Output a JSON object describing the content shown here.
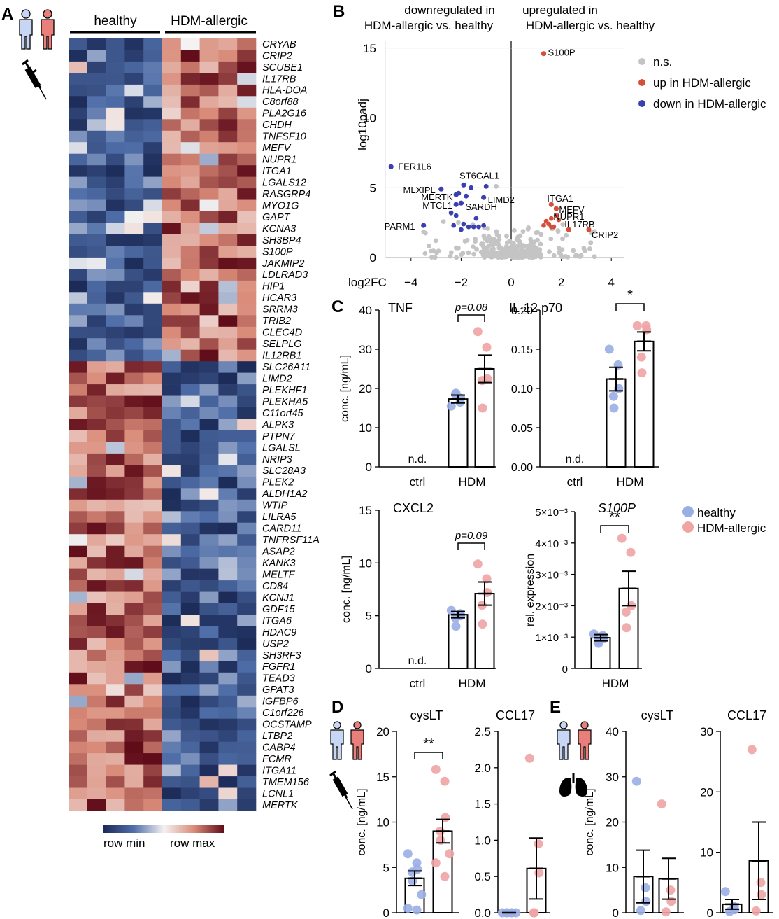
{
  "colors": {
    "healthy": "#9aaee6",
    "allergic": "#f0a4a4",
    "up": "#d5503a",
    "down": "#3a40b0",
    "ns": "#c4c4c4",
    "hm_low": "#1c2b58",
    "hm_mid": "#f4f2f2",
    "hm_high": "#5e0a18"
  },
  "icons": [
    "person-healthy-icon",
    "person-allergic-icon",
    "syringe-icon",
    "lung-icon"
  ],
  "panel_a": {
    "letter": "A",
    "group_healthy": "healthy",
    "group_allergic": "HDM-allergic",
    "legend_min": "row min",
    "legend_max": "row max",
    "genes": [
      "CRYAB",
      "CRIP2",
      "SCUBE1",
      "IL17RB",
      "HLA-DOA",
      "C8orf88",
      "PLA2G16",
      "CHDH",
      "TNFSF10",
      "MEFV",
      "NUPR1",
      "ITGA1",
      "LGALS12",
      "RASGRP4",
      "MYO1G",
      "GAPT",
      "KCNA3",
      "SH3BP4",
      "S100P",
      "JAKMIP2",
      "LDLRAD3",
      "HIP1",
      "HCAR3",
      "SRRM3",
      "TRIB2",
      "CLEC4D",
      "SELPLG",
      "IL12RB1",
      "SLC26A11",
      "LIMD2",
      "PLEKHF1",
      "PLEKHA5",
      "C11orf45",
      "ALPK3",
      "PTPN7",
      "LGALSL",
      "NRIP3",
      "SLC28A3",
      "PLEK2",
      "ALDH1A2",
      "WTIP",
      "LILRA5",
      "CARD11",
      "TNFRSF11A",
      "ASAP2",
      "KANK3",
      "MELTF",
      "CD84",
      "KCNJ1",
      "GDF15",
      "ITGA6",
      "HDAC9",
      "USP2",
      "SH3RF3",
      "FGFR1",
      "TEAD3",
      "GPAT3",
      "IGFBP6",
      "C1orf226",
      "OCSTAMP",
      "LTBP2",
      "CABP4",
      "FCMR",
      "ITGA11",
      "TMEM156",
      "LCNL1",
      "MERTK"
    ]
  },
  "panel_b": {
    "letter": "B",
    "header_down": [
      "downregulated in",
      "HDM-allergic vs. healthy"
    ],
    "header_up": [
      "upregulated in",
      "HDM-allergic vs. healthy"
    ],
    "legend": [
      "n.s.",
      "up in HDM-allergic",
      "down in HDM-allergic"
    ],
    "chart_data": {
      "type": "scatter",
      "xlabel": "log2FC",
      "ylabel": "log10padj",
      "xlim": [
        -4.3,
        4.5
      ],
      "ylim": [
        0,
        15.5
      ],
      "xticks": [
        -4,
        -2,
        0,
        2,
        4
      ],
      "yticks": [
        0,
        5,
        10,
        15
      ],
      "labeled_points": [
        {
          "label": "S100P",
          "x": 1.3,
          "y": 14.6,
          "group": "up"
        },
        {
          "label": "FER1L6",
          "x": -4.8,
          "y": 6.5,
          "group": "down"
        },
        {
          "label": "ST6GAL1",
          "x": -1.9,
          "y": 5.2,
          "group": "down"
        },
        {
          "label": "MLXIPL",
          "x": -2.8,
          "y": 4.9,
          "group": "down"
        },
        {
          "label": "MERTK",
          "x": -2.2,
          "y": 4.5,
          "group": "down"
        },
        {
          "label": "LIMD2",
          "x": -1.1,
          "y": 4.3,
          "group": "down"
        },
        {
          "label": "MTCL1",
          "x": -2.2,
          "y": 3.8,
          "group": "down"
        },
        {
          "label": "SARDH",
          "x": -2.0,
          "y": 3.9,
          "group": "down"
        },
        {
          "label": "PARM1",
          "x": -3.5,
          "y": 2.3,
          "group": "down"
        },
        {
          "label": "ITGA1",
          "x": 1.6,
          "y": 3.8,
          "group": "up"
        },
        {
          "label": "MEFV",
          "x": 1.8,
          "y": 3.5,
          "group": "up"
        },
        {
          "label": "NUPR1",
          "x": 1.8,
          "y": 3.0,
          "group": "up"
        },
        {
          "label": "IL17RB",
          "x": 2.3,
          "y": 2.0,
          "group": "up"
        },
        {
          "label": "CRIP2",
          "x": 3.1,
          "y": 2.0,
          "group": "up"
        }
      ]
    }
  },
  "panel_c": {
    "letter": "C",
    "legend": [
      "healthy",
      "HDM-allergic"
    ],
    "charts": [
      {
        "title": "TNF",
        "ylabel": "conc. [ng/mL]",
        "categories": [
          "ctrl",
          "HDM"
        ],
        "ylim": [
          0,
          40
        ],
        "yticks": [
          "0",
          "10",
          "20",
          "30",
          "40"
        ],
        "nd": "n.d.",
        "sig": "p=0.08",
        "chart_data": {
          "type": "bar",
          "series": [
            {
              "name": "healthy",
              "values": [
                null,
                17.3
              ],
              "sem": [
                null,
                1.0
              ],
              "points": [
                [],
                [
                  15.5,
                  16.5,
                  17.5,
                  18.5,
                  18.8
                ]
              ]
            },
            {
              "name": "HDM-allergic",
              "values": [
                null,
                25.0
              ],
              "sem": [
                null,
                3.5
              ],
              "points": [
                [],
                [
                  34.5,
                  30.5,
                  22.5,
                  22.0,
                  15.0
                ]
              ]
            }
          ]
        }
      },
      {
        "title": "IL-12 p70",
        "ylabel": "",
        "categories": [
          "ctrl",
          "HDM"
        ],
        "ylim": [
          0,
          0.2
        ],
        "yticks": [
          "0.00",
          "0.05",
          "0.10",
          "0.15",
          "0.20"
        ],
        "nd": "n.d.",
        "sig": "*",
        "chart_data": {
          "type": "bar",
          "series": [
            {
              "name": "healthy",
              "values": [
                null,
                0.112
              ],
              "sem": [
                null,
                0.015
              ],
              "points": [
                [],
                [
                  0.15,
                  0.13,
                  0.1,
                  0.09,
                  0.075
                ]
              ]
            },
            {
              "name": "HDM-allergic",
              "values": [
                null,
                0.16
              ],
              "sem": [
                null,
                0.012
              ],
              "points": [
                [],
                [
                  0.18,
                  0.18,
                  0.175,
                  0.14,
                  0.12
                ]
              ]
            }
          ]
        }
      },
      {
        "title": "CXCL2",
        "ylabel": "conc. [ng/mL]",
        "categories": [
          "ctrl",
          "HDM"
        ],
        "ylim": [
          0,
          15
        ],
        "yticks": [
          "0",
          "5",
          "10",
          "15"
        ],
        "nd": "n.d.",
        "sig": "p=0.09",
        "chart_data": {
          "type": "bar",
          "series": [
            {
              "name": "healthy",
              "values": [
                null,
                5.1
              ],
              "sem": [
                null,
                0.3
              ],
              "points": [
                [],
                [
                  5.5,
                  5.2,
                  5.0,
                  4.8,
                  4.0
                ]
              ]
            },
            {
              "name": "HDM-allergic",
              "values": [
                null,
                7.1
              ],
              "sem": [
                null,
                1.1
              ],
              "points": [
                [],
                [
                  9.9,
                  8.5,
                  7.2,
                  6.0,
                  4.2
                ]
              ]
            }
          ]
        }
      },
      {
        "title": "S100P",
        "ylabel": "rel. expression",
        "categories": [
          "HDM"
        ],
        "ylim": [
          0,
          5
        ],
        "yticks": [
          "0",
          "1×10⁻³",
          "2×10⁻³",
          "3×10⁻³",
          "4×10⁻³",
          "5×10⁻³"
        ],
        "nd": "",
        "sig": "**",
        "chart_data": {
          "type": "bar",
          "series": [
            {
              "name": "healthy",
              "values": [
                0.98
              ],
              "sem": [
                0.1
              ],
              "points": [
                [
                  1.1,
                  1.05,
                  0.95,
                  0.85,
                  0.8
                ]
              ]
            },
            {
              "name": "HDM-allergic",
              "values": [
                2.55
              ],
              "sem": [
                0.55
              ],
              "points": [
                [
                  4.15,
                  3.7,
                  2.0,
                  1.8,
                  1.3
                ]
              ]
            }
          ]
        }
      }
    ]
  },
  "panel_d": {
    "letter": "D",
    "charts": [
      {
        "title": "cysLT",
        "ylabel": "conc. [ng/mL]",
        "ylim": [
          0,
          20
        ],
        "yticks": [
          "0",
          "5",
          "10",
          "15",
          "20"
        ],
        "sig": "**",
        "chart_data": {
          "type": "bar",
          "series": [
            {
              "name": "healthy",
              "values": [
                3.8
              ],
              "sem": [
                0.8
              ],
              "points": [
                6.5,
                5.5,
                4.8,
                4.5,
                3.5,
                2.0,
                0.5,
                0.3
              ]
            },
            {
              "name": "HDM-allergic",
              "values": [
                9.0
              ],
              "sem": [
                1.3
              ],
              "points": [
                15.8,
                14.5,
                10.5,
                9.0,
                8.0,
                6.5,
                5.5,
                4.0
              ]
            }
          ]
        }
      },
      {
        "title": "CCL17",
        "ylabel": "",
        "ylim": [
          0,
          2.5
        ],
        "yticks": [
          "0.0",
          "0.5",
          "1.0",
          "1.5",
          "2.0",
          "2.5"
        ],
        "sig": "",
        "chart_data": {
          "type": "bar",
          "series": [
            {
              "name": "healthy",
              "values": [
                0.0
              ],
              "sem": [
                0.0
              ],
              "points": [
                0,
                0,
                0,
                0,
                0,
                0
              ]
            },
            {
              "name": "HDM-allergic",
              "values": [
                0.61
              ],
              "sem": [
                0.42
              ],
              "points": [
                2.13,
                0.95,
                0.55,
                0,
                0
              ]
            }
          ]
        }
      }
    ]
  },
  "panel_e": {
    "letter": "E",
    "charts": [
      {
        "title": "cysLT",
        "ylabel": "conc. [ng/mL]",
        "ylim": [
          0,
          40
        ],
        "yticks": [
          "0",
          "10",
          "20",
          "30",
          "40"
        ],
        "sig": "",
        "chart_data": {
          "type": "bar",
          "series": [
            {
              "name": "healthy",
              "values": [
                8.0
              ],
              "sem": [
                5.8
              ],
              "points": [
                29.0,
                5.5,
                2.5,
                0.5
              ]
            },
            {
              "name": "HDM-allergic",
              "values": [
                7.5
              ],
              "sem": [
                4.5
              ],
              "points": [
                24.0,
                5.0,
                2.5,
                0.2
              ]
            }
          ]
        }
      },
      {
        "title": "CCL17",
        "ylabel": "",
        "ylim": [
          0,
          30
        ],
        "yticks": [
          "0",
          "10",
          "20",
          "30"
        ],
        "sig": "",
        "chart_data": {
          "type": "bar",
          "series": [
            {
              "name": "healthy",
              "values": [
                1.4
              ],
              "sem": [
                0.8
              ],
              "points": [
                3.5,
                1.0,
                0.5,
                0.2
              ]
            },
            {
              "name": "HDM-allergic",
              "values": [
                8.6
              ],
              "sem": [
                6.4
              ],
              "points": [
                27.0,
                5.0,
                3.0,
                0.3
              ]
            }
          ]
        }
      }
    ]
  }
}
